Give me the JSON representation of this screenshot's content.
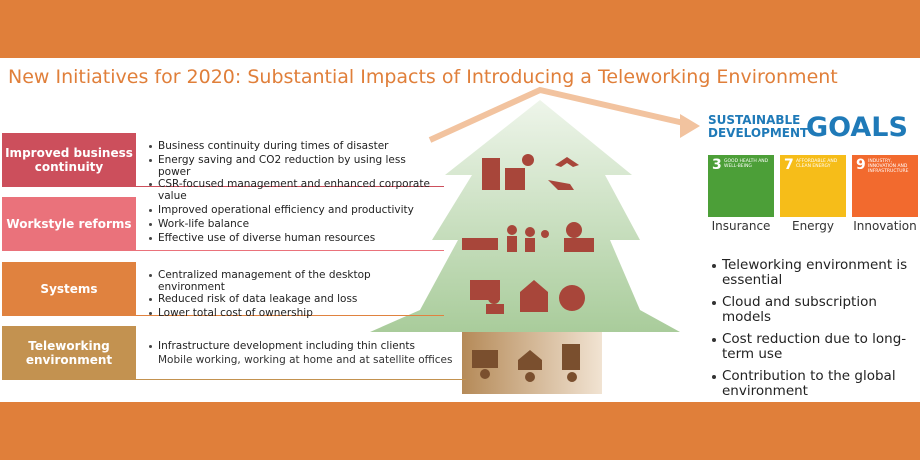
{
  "title": "New Initiatives for 2020: Substantial Impacts of Introducing a Teleworking Environment",
  "layers": [
    {
      "label": "Improved business continuity",
      "color": "#cc4f5c",
      "items": [
        "Business continuity during times of disaster",
        "Energy saving and CO2 reduction by using less power",
        "CSR-focused management and enhanced corporate value"
      ]
    },
    {
      "label": "Workstyle reforms",
      "color": "#ea727b",
      "items": [
        "Improved operational efficiency and productivity",
        "Work-life balance",
        "Effective use of diverse human resources"
      ]
    },
    {
      "label": "Systems",
      "color": "#e0823f",
      "items": [
        "Centralized management of the desktop environment",
        "Reduced risk of data leakage and loss",
        "Lower total cost of ownership"
      ]
    },
    {
      "label": "Teleworking environment",
      "color": "#c39250",
      "items": [
        "Infrastructure development including thin clients"
      ],
      "note": "Mobile working, working at home and at satellite offices"
    }
  ],
  "sdg": {
    "heading": "SUSTAINABLE DEVELOPMENT",
    "goals_word": "GOALS",
    "tiles": [
      {
        "number": "3",
        "title": "GOOD HEALTH AND WELL-BEING",
        "caption": "Insurance",
        "color": "#4c9f38"
      },
      {
        "number": "7",
        "title": "AFFORDABLE AND CLEAN ENERGY",
        "caption": "Energy",
        "color": "#f6bd19"
      },
      {
        "number": "9",
        "title": "INDUSTRY, INNOVATION AND INFRASTRUCTURE",
        "caption": "Innovation",
        "color": "#f26a2e"
      }
    ]
  },
  "points": [
    "Teleworking environment is essential",
    "Cloud and subscription models",
    "Cost reduction due to long-term use",
    "Contribution to the global environment"
  ]
}
